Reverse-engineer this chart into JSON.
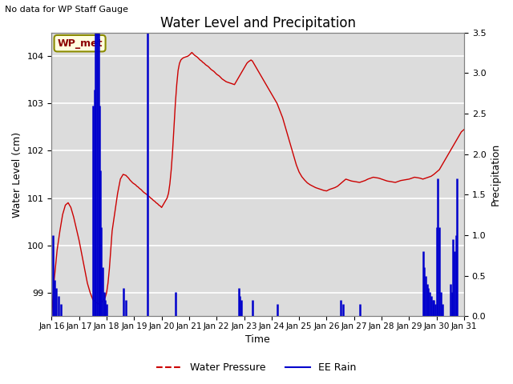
{
  "title": "Water Level and Precipitation",
  "subtitle": "No data for WP Staff Gauge",
  "xlabel": "Time",
  "ylabel_left": "Water Level (cm)",
  "ylabel_right": "Precipitation",
  "legend_label1": "Water Pressure",
  "legend_label2": "EE Rain",
  "wp_met_label": "WP_met",
  "ylim_left": [
    98.5,
    104.5
  ],
  "ylim_right": [
    0.0,
    3.5
  ],
  "plot_bg_color": "#dcdcdc",
  "water_pressure_color": "#cc0000",
  "ee_rain_color": "#0000cc",
  "x_tick_labels": [
    "Jan 16",
    "Jan 17",
    "Jan 18",
    "Jan 19",
    "Jan 20",
    "Jan 21",
    "Jan 22",
    "Jan 23",
    "Jan 24",
    "Jan 25",
    "Jan 26",
    "Jan 27",
    "Jan 28",
    "Jan 29",
    "Jan 30",
    "Jan 31"
  ],
  "water_pressure_x": [
    0.0,
    0.05,
    0.1,
    0.15,
    0.2,
    0.3,
    0.4,
    0.5,
    0.6,
    0.7,
    0.8,
    0.9,
    1.0,
    1.1,
    1.2,
    1.3,
    1.4,
    1.5,
    1.6,
    1.65,
    1.7,
    1.75,
    1.8,
    1.85,
    1.9,
    1.95,
    2.0,
    2.05,
    2.1,
    2.15,
    2.2,
    2.3,
    2.4,
    2.5,
    2.6,
    2.7,
    2.75,
    2.8,
    2.85,
    2.9,
    2.95,
    3.0,
    3.05,
    3.1,
    3.15,
    3.2,
    3.25,
    3.3,
    3.35,
    3.4,
    3.45,
    3.5,
    3.55,
    3.6,
    3.65,
    3.7,
    3.75,
    3.8,
    3.85,
    3.9,
    3.95,
    4.0,
    4.05,
    4.1,
    4.15,
    4.2,
    4.25,
    4.3,
    4.35,
    4.4,
    4.45,
    4.5,
    4.55,
    4.6,
    4.65,
    4.7,
    4.75,
    4.8,
    4.85,
    4.9,
    4.95,
    5.0,
    5.05,
    5.1,
    5.15,
    5.2,
    5.25,
    5.3,
    5.35,
    5.4,
    5.45,
    5.5,
    5.55,
    5.6,
    5.65,
    5.7,
    5.75,
    5.8,
    5.85,
    5.9,
    5.95,
    6.0,
    6.05,
    6.1,
    6.15,
    6.2,
    6.25,
    6.3,
    6.35,
    6.4,
    6.45,
    6.5,
    6.55,
    6.6,
    6.65,
    6.7,
    6.75,
    6.8,
    6.85,
    6.9,
    6.95,
    7.0,
    7.05,
    7.1,
    7.15,
    7.2,
    7.25,
    7.3,
    7.35,
    7.4,
    7.45,
    7.5,
    7.55,
    7.6,
    7.65,
    7.7,
    7.75,
    7.8,
    7.85,
    7.9,
    7.95,
    8.0,
    8.1,
    8.2,
    8.3,
    8.4,
    8.5,
    8.6,
    8.7,
    8.8,
    8.9,
    9.0,
    9.1,
    9.2,
    9.3,
    9.4,
    9.5,
    9.6,
    9.7,
    9.8,
    9.9,
    10.0,
    10.1,
    10.2,
    10.3,
    10.4,
    10.5,
    10.6,
    10.7,
    10.8,
    10.9,
    11.0,
    11.1,
    11.2,
    11.3,
    11.4,
    11.5,
    11.6,
    11.7,
    11.8,
    11.9,
    12.0,
    12.1,
    12.2,
    12.3,
    12.4,
    12.5,
    12.6,
    12.7,
    12.8,
    12.9,
    13.0,
    13.1,
    13.2,
    13.3,
    13.4,
    13.5,
    13.6,
    13.7,
    13.8,
    13.9,
    14.0,
    14.1,
    14.2,
    14.3,
    14.4,
    14.5,
    14.6,
    14.7,
    14.8,
    14.9,
    15.0
  ],
  "water_pressure_y": [
    98.5,
    98.9,
    99.3,
    99.6,
    99.9,
    100.3,
    100.65,
    100.85,
    100.9,
    100.8,
    100.6,
    100.35,
    100.1,
    99.8,
    99.5,
    99.2,
    99.0,
    98.85,
    98.8,
    98.78,
    98.76,
    98.75,
    98.78,
    98.82,
    98.85,
    98.9,
    99.0,
    99.2,
    99.5,
    99.9,
    100.3,
    100.7,
    101.1,
    101.4,
    101.5,
    101.48,
    101.45,
    101.42,
    101.38,
    101.35,
    101.32,
    101.3,
    101.28,
    101.25,
    101.23,
    101.2,
    101.18,
    101.15,
    101.12,
    101.1,
    101.08,
    101.05,
    101.03,
    101.0,
    100.98,
    100.95,
    100.93,
    100.9,
    100.88,
    100.85,
    100.83,
    100.8,
    100.85,
    100.9,
    100.95,
    101.0,
    101.1,
    101.3,
    101.6,
    102.0,
    102.5,
    103.0,
    103.4,
    103.7,
    103.85,
    103.92,
    103.95,
    103.97,
    103.98,
    103.99,
    104.0,
    104.02,
    104.05,
    104.08,
    104.05,
    104.02,
    104.0,
    103.98,
    103.95,
    103.92,
    103.9,
    103.87,
    103.85,
    103.82,
    103.8,
    103.78,
    103.75,
    103.72,
    103.7,
    103.68,
    103.65,
    103.62,
    103.6,
    103.58,
    103.55,
    103.52,
    103.5,
    103.48,
    103.46,
    103.45,
    103.44,
    103.43,
    103.42,
    103.41,
    103.4,
    103.45,
    103.5,
    103.55,
    103.6,
    103.65,
    103.7,
    103.75,
    103.8,
    103.85,
    103.88,
    103.9,
    103.92,
    103.9,
    103.85,
    103.8,
    103.75,
    103.7,
    103.65,
    103.6,
    103.55,
    103.5,
    103.45,
    103.4,
    103.35,
    103.3,
    103.25,
    103.2,
    103.1,
    103.0,
    102.85,
    102.7,
    102.5,
    102.3,
    102.1,
    101.9,
    101.7,
    101.55,
    101.45,
    101.38,
    101.32,
    101.28,
    101.25,
    101.22,
    101.2,
    101.18,
    101.16,
    101.15,
    101.18,
    101.2,
    101.22,
    101.25,
    101.3,
    101.35,
    101.4,
    101.38,
    101.36,
    101.35,
    101.34,
    101.33,
    101.35,
    101.37,
    101.4,
    101.42,
    101.44,
    101.43,
    101.42,
    101.4,
    101.38,
    101.36,
    101.35,
    101.34,
    101.33,
    101.35,
    101.37,
    101.38,
    101.39,
    101.4,
    101.42,
    101.44,
    101.43,
    101.42,
    101.4,
    101.42,
    101.44,
    101.46,
    101.5,
    101.55,
    101.6,
    101.7,
    101.8,
    101.9,
    102.0,
    102.1,
    102.2,
    102.3,
    102.4,
    102.45
  ],
  "ee_rain_x": [
    0.05,
    0.1,
    0.15,
    0.25,
    0.35,
    1.5,
    1.55,
    1.6,
    1.65,
    1.7,
    1.75,
    1.78,
    1.8,
    1.85,
    1.9,
    1.95,
    2.0,
    2.6,
    2.7,
    3.5,
    4.5,
    6.8,
    6.85,
    6.9,
    7.3,
    8.2,
    10.5,
    10.6,
    11.2,
    13.5,
    13.55,
    13.6,
    13.65,
    13.7,
    13.75,
    13.8,
    13.85,
    13.9,
    13.95,
    14.0,
    14.05,
    14.1,
    14.15,
    14.2,
    14.5,
    14.55,
    14.6,
    14.65,
    14.7,
    14.75
  ],
  "ee_rain_y": [
    1.0,
    0.45,
    0.35,
    0.25,
    0.15,
    2.6,
    2.8,
    3.5,
    3.5,
    3.5,
    2.6,
    1.8,
    1.1,
    0.6,
    0.3,
    0.2,
    0.15,
    0.35,
    0.2,
    3.5,
    0.3,
    0.35,
    0.25,
    0.2,
    0.2,
    0.15,
    0.2,
    0.15,
    0.15,
    0.8,
    0.6,
    0.5,
    0.4,
    0.35,
    0.3,
    0.25,
    0.2,
    0.2,
    0.15,
    1.1,
    1.7,
    1.1,
    0.3,
    0.15,
    0.4,
    0.3,
    0.95,
    0.8,
    1.0,
    1.7
  ]
}
